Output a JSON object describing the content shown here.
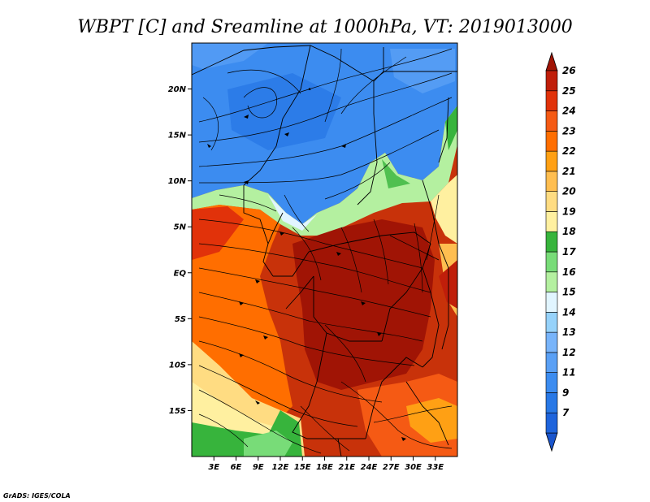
{
  "title": "WBPT [C] and Sreamline at 1000hPa, VT: 2019013000",
  "credit": "GrADS: IGES/COLA",
  "map": {
    "lon_range": [
      0,
      36
    ],
    "lat_range": [
      -20,
      25
    ],
    "lat_ticks": [
      {
        "value": 20,
        "label": "20N"
      },
      {
        "value": 15,
        "label": "15N"
      },
      {
        "value": 10,
        "label": "10N"
      },
      {
        "value": 5,
        "label": "5N"
      },
      {
        "value": 0,
        "label": "EQ"
      },
      {
        "value": -5,
        "label": "5S"
      },
      {
        "value": -10,
        "label": "10S"
      },
      {
        "value": -15,
        "label": "15S"
      }
    ],
    "lon_ticks": [
      {
        "value": 3,
        "label": "3E"
      },
      {
        "value": 6,
        "label": "6E"
      },
      {
        "value": 9,
        "label": "9E"
      },
      {
        "value": 12,
        "label": "12E"
      },
      {
        "value": 15,
        "label": "15E"
      },
      {
        "value": 18,
        "label": "18E"
      },
      {
        "value": 21,
        "label": "21E"
      },
      {
        "value": 24,
        "label": "24E"
      },
      {
        "value": 27,
        "label": "27E"
      },
      {
        "value": 30,
        "label": "30E"
      },
      {
        "value": 33,
        "label": "33E"
      }
    ]
  },
  "colorbar": {
    "levels": [
      {
        "label": "7",
        "color": "#1e64dc"
      },
      {
        "label": "9",
        "color": "#2878e6"
      },
      {
        "label": "11",
        "color": "#3c8cf0"
      },
      {
        "label": "12",
        "color": "#5aa0f5"
      },
      {
        "label": "13",
        "color": "#78b4fa"
      },
      {
        "label": "14",
        "color": "#96d2fa"
      },
      {
        "label": "15",
        "color": "#e1f5ff"
      },
      {
        "label": "16",
        "color": "#b4f0a0"
      },
      {
        "label": "17",
        "color": "#78dc78"
      },
      {
        "label": "18",
        "color": "#37b43c"
      },
      {
        "label": "19",
        "color": "#fff0a0"
      },
      {
        "label": "20",
        "color": "#ffdc82"
      },
      {
        "label": "21",
        "color": "#ffbe50"
      },
      {
        "label": "22",
        "color": "#ffa014"
      },
      {
        "label": "23",
        "color": "#ff6e00"
      },
      {
        "label": "24",
        "color": "#f55a14"
      },
      {
        "label": "25",
        "color": "#e1320a"
      },
      {
        "label": "26",
        "color": "#c01e0a"
      }
    ],
    "low_color": "#1a55cc",
    "high_color": "#a01405"
  }
}
